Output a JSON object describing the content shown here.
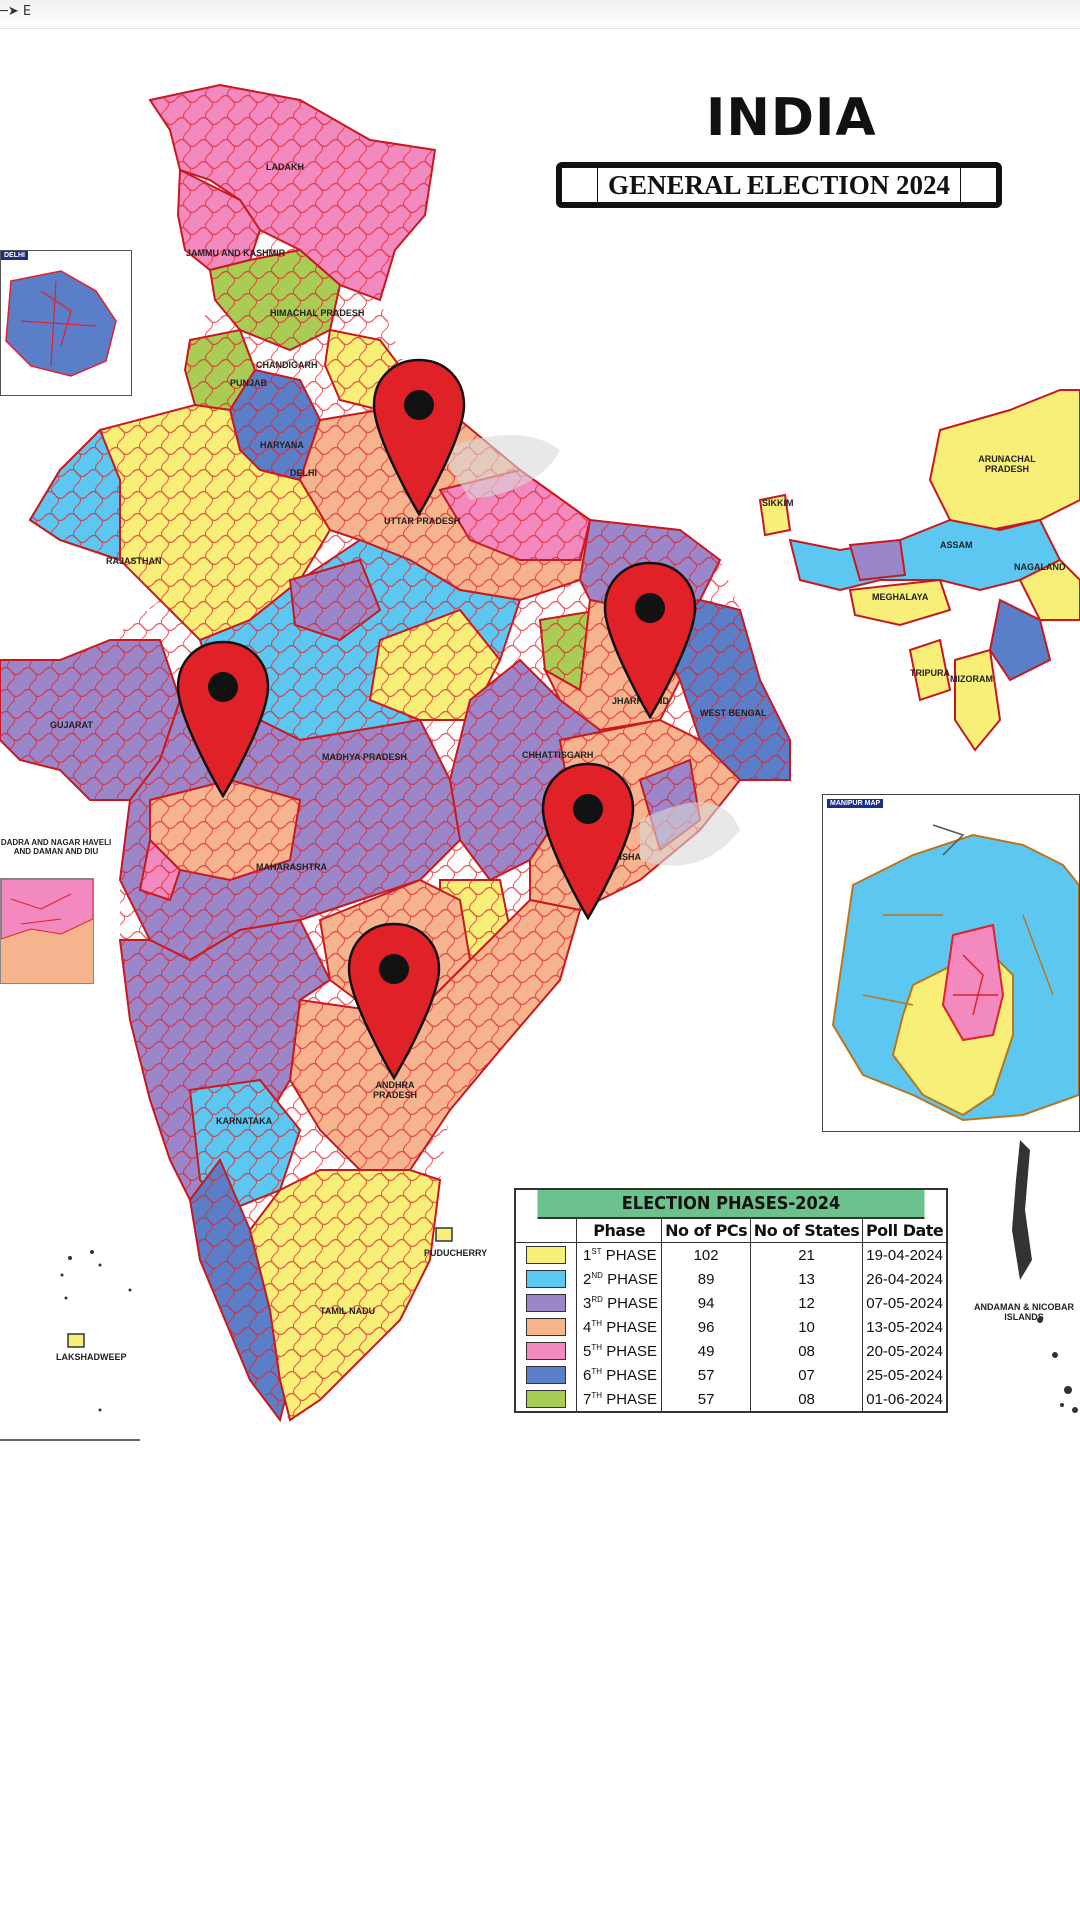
{
  "map": {
    "title": "INDIA",
    "subtitle": "GENERAL ELECTION 2024",
    "compass_label": "E",
    "colors": {
      "phase1": "#f7ef78",
      "phase2": "#5cc8f2",
      "phase3": "#9a86c8",
      "phase4": "#f6b48e",
      "phase5": "#f28ac0",
      "phase6": "#5b7ec8",
      "phase7": "#a9cc55",
      "border": "#e0202a",
      "pin": "#e02128"
    },
    "state_labels": {
      "ladakh": "LADAKH",
      "jammu_kashmir": "JAMMU AND KASHMIR",
      "himachal": "HIMACHAL PRADESH",
      "chandigarh": "CHANDIGARH",
      "punjab": "PUNJAB",
      "haryana": "HARYANA",
      "delhi": "DELHI",
      "uttar_pradesh": "UTTAR PRADESH",
      "rajasthan": "RAJASTHAN",
      "gujarat": "GUJARAT",
      "madhya_pradesh": "MADHYA PRADESH",
      "chhattisgarh": "CHHATTISGARH",
      "jharkhand": "JHARKHAND",
      "west_bengal": "WEST BENGAL",
      "odisha": "ODISHA",
      "maharashtra": "MAHARASHTRA",
      "andhra": "ANDHRA PRADESH",
      "karnataka": "KARNATAKA",
      "tamil_nadu": "TAMIL NADU",
      "puducherry": "PUDUCHERRY",
      "lakshadweep": "LAKSHADWEEP",
      "andaman": "ANDAMAN & NICOBAR ISLANDS",
      "arunachal": "ARUNACHAL PRADESH",
      "nagaland": "NAGALAND",
      "meghalaya": "MEGHALAYA",
      "assam": "ASSAM",
      "tripura": "TRIPURA",
      "mizoram": "MIZORAM",
      "sikkim": "SIKKIM",
      "dadra": "DADRA AND NAGAR HAVELI AND DAMAN AND DIU"
    },
    "insets": {
      "delhi_tag": "DELHI",
      "manipur_tag": "MANIPUR MAP"
    },
    "pins": [
      "pin-uttar-pradesh",
      "pin-jharkhand",
      "pin-gujarat",
      "pin-odisha",
      "pin-andhra-pradesh"
    ]
  },
  "legend": {
    "title": "ELECTION PHASES-2024",
    "headers": [
      "Phase",
      "No of PCs",
      "No of States",
      "Poll Date"
    ],
    "rows": [
      {
        "n": "1",
        "sup": "ST",
        "label": "PHASE",
        "pcs": "102",
        "states": "21",
        "date": "19-04-2024",
        "color": "#f7ef78"
      },
      {
        "n": "2",
        "sup": "ND",
        "label": "PHASE",
        "pcs": "89",
        "states": "13",
        "date": "26-04-2024",
        "color": "#5cc8f2"
      },
      {
        "n": "3",
        "sup": "RD",
        "label": "PHASE",
        "pcs": "94",
        "states": "12",
        "date": "07-05-2024",
        "color": "#9a86c8"
      },
      {
        "n": "4",
        "sup": "TH",
        "label": "PHASE",
        "pcs": "96",
        "states": "10",
        "date": "13-05-2024",
        "color": "#f6b48e"
      },
      {
        "n": "5",
        "sup": "TH",
        "label": "PHASE",
        "pcs": "49",
        "states": "08",
        "date": "20-05-2024",
        "color": "#f28ac0"
      },
      {
        "n": "6",
        "sup": "TH",
        "label": "PHASE",
        "pcs": "57",
        "states": "07",
        "date": "25-05-2024",
        "color": "#5b7ec8"
      },
      {
        "n": "7",
        "sup": "TH",
        "label": "PHASE",
        "pcs": "57",
        "states": "08",
        "date": "01-06-2024",
        "color": "#a9cc55"
      }
    ]
  }
}
